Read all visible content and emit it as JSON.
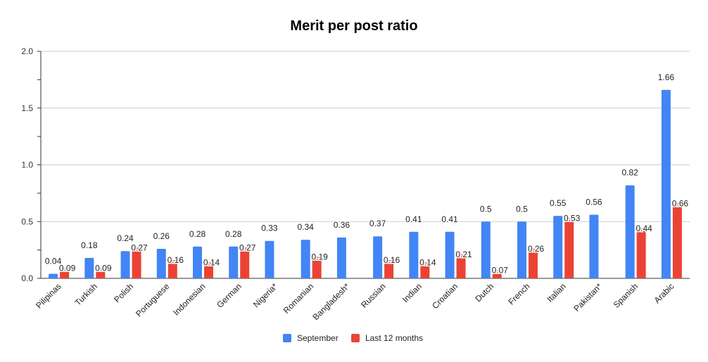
{
  "chart_data": {
    "type": "bar",
    "title": "Merit per post ratio",
    "xlabel": "",
    "ylabel": "",
    "ylim": [
      0,
      2.0
    ],
    "yticks": [
      "0.0",
      "0.5",
      "1.0",
      "1.5",
      "2.0"
    ],
    "grid": true,
    "legend_position": "bottom",
    "categories": [
      "Pilipinas",
      "Turkish",
      "Polish",
      "Portuguese",
      "Indonesian",
      "German",
      "Nigeria*",
      "Romanian",
      "Bangladesh*",
      "Russian",
      "Indian",
      "Croatian",
      "Dutch",
      "French",
      "Italian",
      "Pakistan*",
      "Spanish",
      "Arabic"
    ],
    "series": [
      {
        "name": "September",
        "color": "#4285f4",
        "values": [
          0.04,
          0.18,
          0.24,
          0.26,
          0.28,
          0.28,
          0.33,
          0.34,
          0.36,
          0.37,
          0.41,
          0.41,
          0.5,
          0.5,
          0.55,
          0.56,
          0.82,
          1.66
        ],
        "labels": [
          "0.04",
          "0.18",
          "0.24",
          "0.26",
          "0.28",
          "0.28",
          "0.33",
          "0.34",
          "0.36",
          "0.37",
          "0.41",
          "0.41",
          "0.5",
          "0.5",
          "0.55",
          "0.56",
          "0.82",
          "1.66"
        ]
      },
      {
        "name": "Last 12 months",
        "color": "#ea4335",
        "values": [
          0.09,
          0.09,
          0.27,
          0.16,
          0.14,
          0.27,
          null,
          0.19,
          null,
          0.16,
          0.14,
          0.21,
          0.07,
          0.26,
          0.53,
          null,
          0.44,
          0.66
        ],
        "labels": [
          "0.09",
          "0.09",
          "0.27",
          "0.16",
          "0.14",
          "0.27",
          "",
          "0.19",
          "",
          "0.16",
          "0.14",
          "0.21",
          "0.07",
          "0.26",
          "0.53",
          "",
          "0.44",
          "0.66"
        ]
      }
    ]
  }
}
